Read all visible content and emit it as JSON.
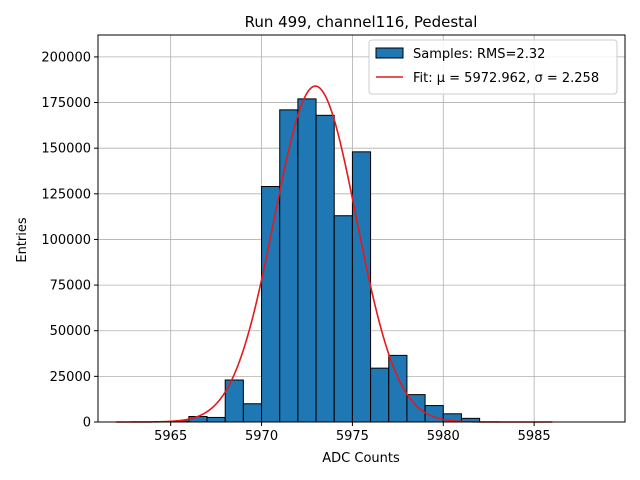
{
  "chart_data": {
    "type": "bar",
    "title": "Run 499, channel116, Pedestal",
    "xlabel": "ADC Counts",
    "ylabel": "Entries",
    "xlim": [
      5961,
      5990
    ],
    "ylim": [
      0,
      212000
    ],
    "xticks": [
      5965,
      5970,
      5975,
      5980,
      5985
    ],
    "yticks": [
      0,
      25000,
      50000,
      75000,
      100000,
      125000,
      150000,
      175000,
      200000
    ],
    "grid": true,
    "bin_width": 1,
    "bins": [
      {
        "x0": 5965,
        "value": 500
      },
      {
        "x0": 5966,
        "value": 3000
      },
      {
        "x0": 5967,
        "value": 2500
      },
      {
        "x0": 5968,
        "value": 23000
      },
      {
        "x0": 5969,
        "value": 10000
      },
      {
        "x0": 5970,
        "value": 129000
      },
      {
        "x0": 5971,
        "value": 171000
      },
      {
        "x0": 5972,
        "value": 177000
      },
      {
        "x0": 5973,
        "value": 168000
      },
      {
        "x0": 5974,
        "value": 113000
      },
      {
        "x0": 5975,
        "value": 148000
      },
      {
        "x0": 5976,
        "value": 29500
      },
      {
        "x0": 5977,
        "value": 36500
      },
      {
        "x0": 5978,
        "value": 15000
      },
      {
        "x0": 5979,
        "value": 9000
      },
      {
        "x0": 5980,
        "value": 4500
      },
      {
        "x0": 5981,
        "value": 2000
      }
    ],
    "fit": {
      "mu": 5972.962,
      "sigma": 2.258,
      "amplitude": 184000,
      "x_range": [
        5962,
        5986
      ]
    },
    "legend": {
      "position": "top-right",
      "entries": [
        {
          "label": "Samples: RMS=2.32",
          "kind": "bar"
        },
        {
          "label": "Fit: μ = 5972.962, σ = 2.258",
          "kind": "line"
        }
      ]
    },
    "colors": {
      "bar_fill": "#1f77b4",
      "bar_edge": "#000000",
      "fit_line": "#e41a1c",
      "grid": "#b0b0b0"
    }
  }
}
